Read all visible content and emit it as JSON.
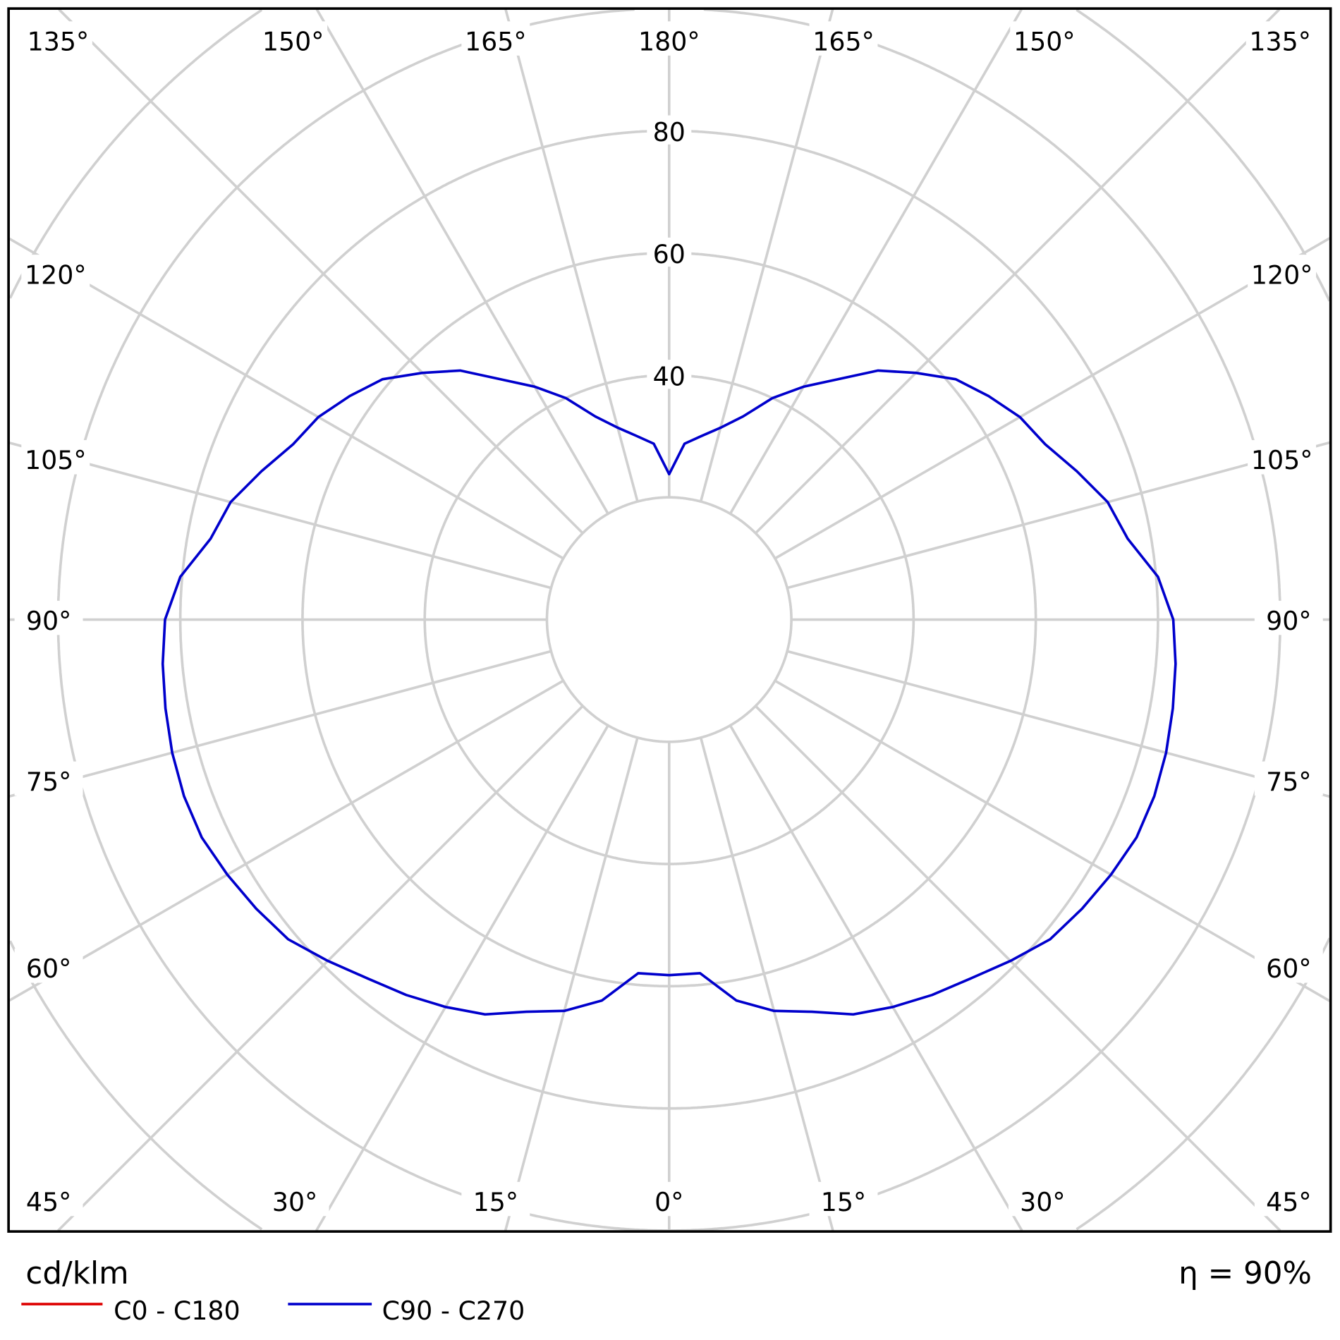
{
  "chart_data": {
    "type": "polar-line",
    "unit_label": "cd/klm",
    "efficiency_label": "η = 90%",
    "radial_ticks": [
      20,
      40,
      60,
      80,
      100,
      120
    ],
    "radial_tick_labels": [
      "80",
      "60",
      "40"
    ],
    "angle_labels": {
      "top": [
        "135°",
        "150°",
        "165°",
        "180°",
        "165°",
        "150°",
        "135°"
      ],
      "left": [
        "120°",
        "105°",
        "90°",
        "75°",
        "60°"
      ],
      "right": [
        "120°",
        "105°",
        "90°",
        "75°",
        "60°"
      ],
      "bottom": [
        "45°",
        "30°",
        "15°",
        "0°",
        "15°",
        "30°",
        "45°"
      ]
    },
    "grid": true,
    "legend_position": "bottom-left",
    "series": [
      {
        "name": "C0 - C180",
        "color": "#dd0000",
        "gamma": [],
        "values": []
      },
      {
        "name": "C90 - C270",
        "color": "#0000cc",
        "gamma": [
          0,
          5,
          10,
          15,
          20,
          25,
          30,
          35,
          40,
          45,
          50,
          55,
          60,
          65,
          70,
          75,
          80,
          85,
          90,
          95,
          100,
          105,
          110,
          115,
          120,
          125,
          130,
          135,
          140,
          145,
          150,
          155,
          160,
          165,
          170,
          175,
          180
        ],
        "values": [
          58.2,
          58.1,
          63.3,
          66.3,
          68.3,
          71.3,
          73.2,
          75,
          76.7,
          79,
          81.4,
          82.5,
          83.5,
          84.4,
          84.5,
          84.2,
          83.7,
          83.2,
          82.5,
          80.3,
          76.2,
          74.3,
          71,
          67.9,
          66.3,
          63.8,
          61.2,
          57.1,
          53.2,
          48,
          44,
          40,
          35.4,
          32.5,
          30.5,
          28.9,
          23.8
        ]
      }
    ]
  }
}
